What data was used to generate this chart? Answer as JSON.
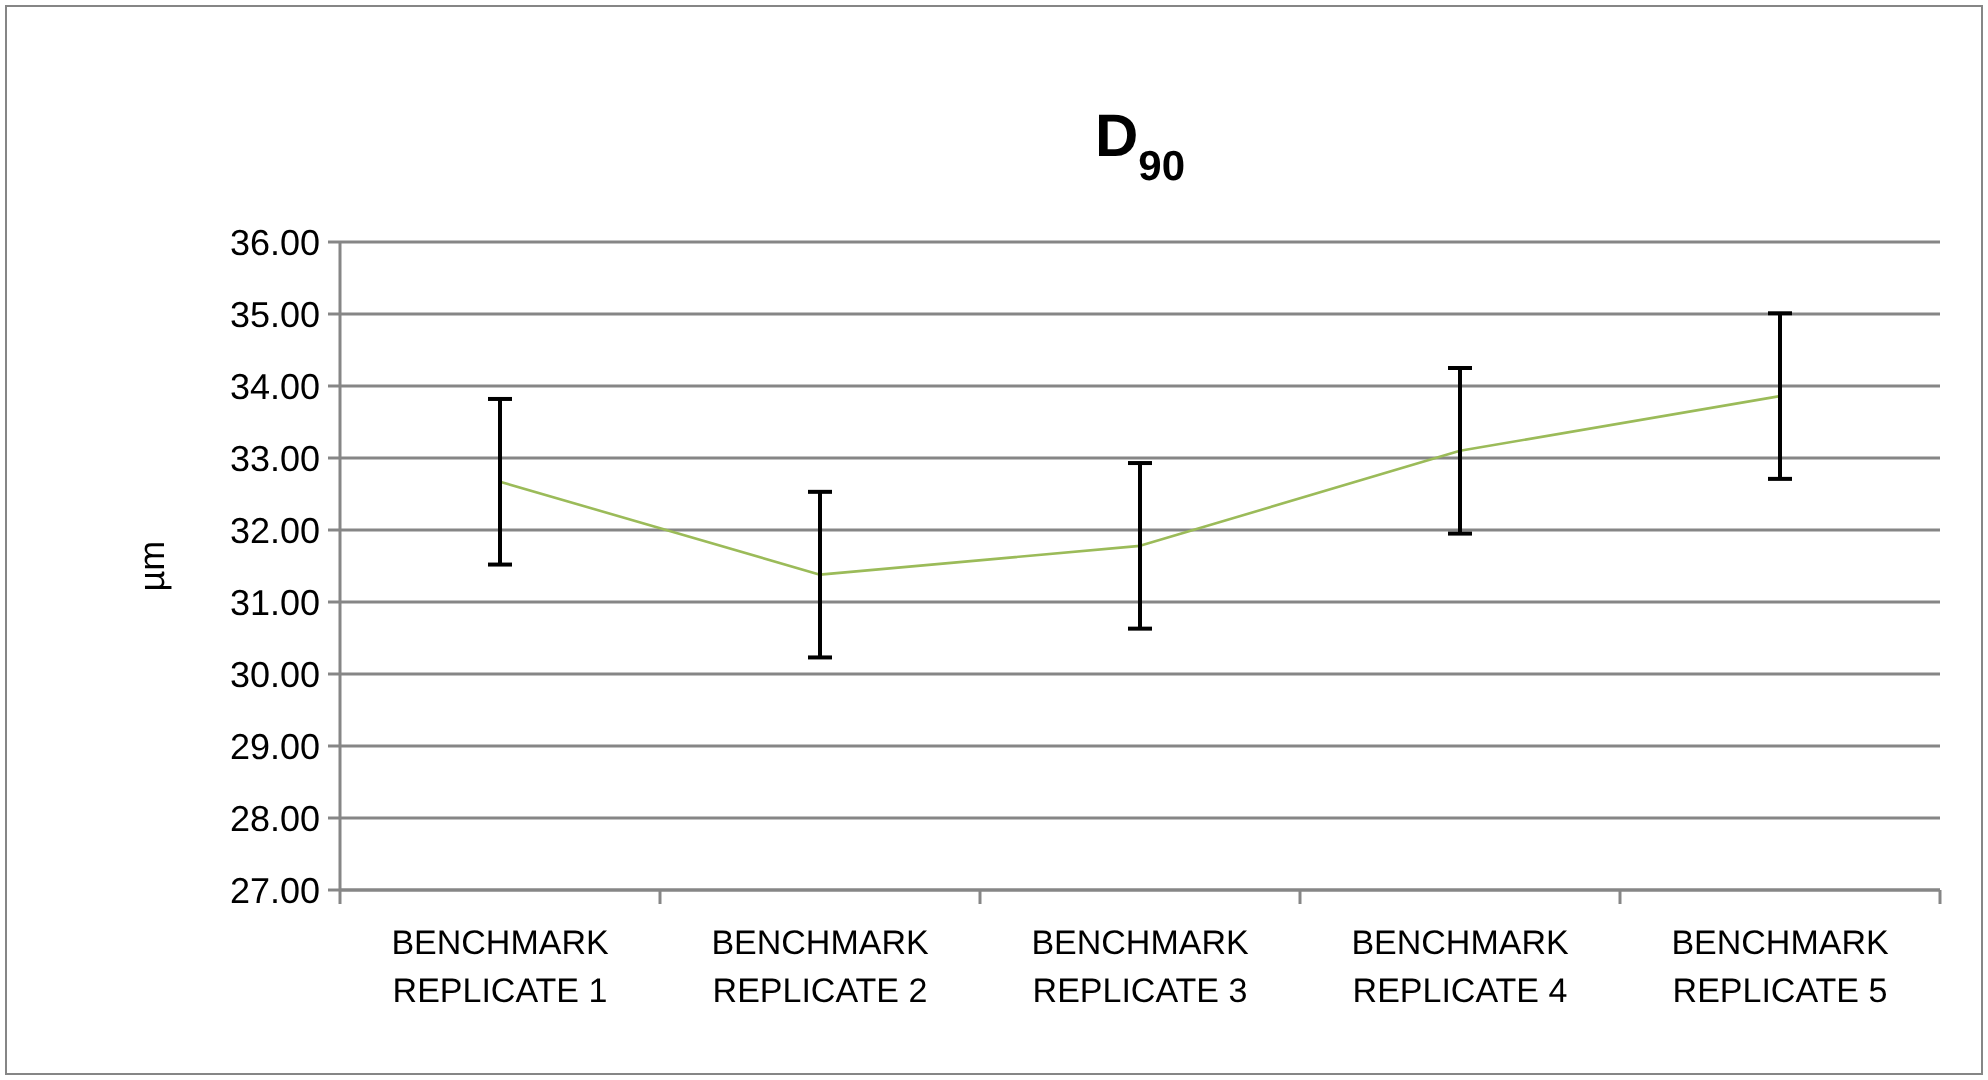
{
  "chart_data": {
    "type": "line",
    "title": "D$_{90}$",
    "ylabel": "µm",
    "categories": [
      "BENCHMARK REPLICATE 1",
      "BENCHMARK REPLICATE 2",
      "BENCHMARK REPLICATE 3",
      "BENCHMARK REPLICATE 4",
      "BENCHMARK REPLICATE 5"
    ],
    "series": [
      {
        "color": "#9bbb59",
        "values": [
          32.67,
          31.38,
          31.78,
          33.1,
          33.86
        ],
        "errors": [
          1.15,
          1.15,
          1.15,
          1.15,
          1.15
        ]
      }
    ],
    "ylim": [
      27,
      36
    ],
    "yticks": [
      {
        "value": 27,
        "label": "27.00"
      },
      {
        "value": 28,
        "label": "28.00"
      },
      {
        "value": 29,
        "label": "29.00"
      },
      {
        "value": 30,
        "label": "30.00"
      },
      {
        "value": 31,
        "label": "31.00"
      },
      {
        "value": 32,
        "label": "32.00"
      },
      {
        "value": 33,
        "label": "33.00"
      },
      {
        "value": 34,
        "label": "34.00"
      },
      {
        "value": 35,
        "label": "35.00"
      },
      {
        "value": 36,
        "label": "36.00"
      }
    ],
    "grid": "y",
    "marker": "none",
    "line_style": "solid"
  }
}
